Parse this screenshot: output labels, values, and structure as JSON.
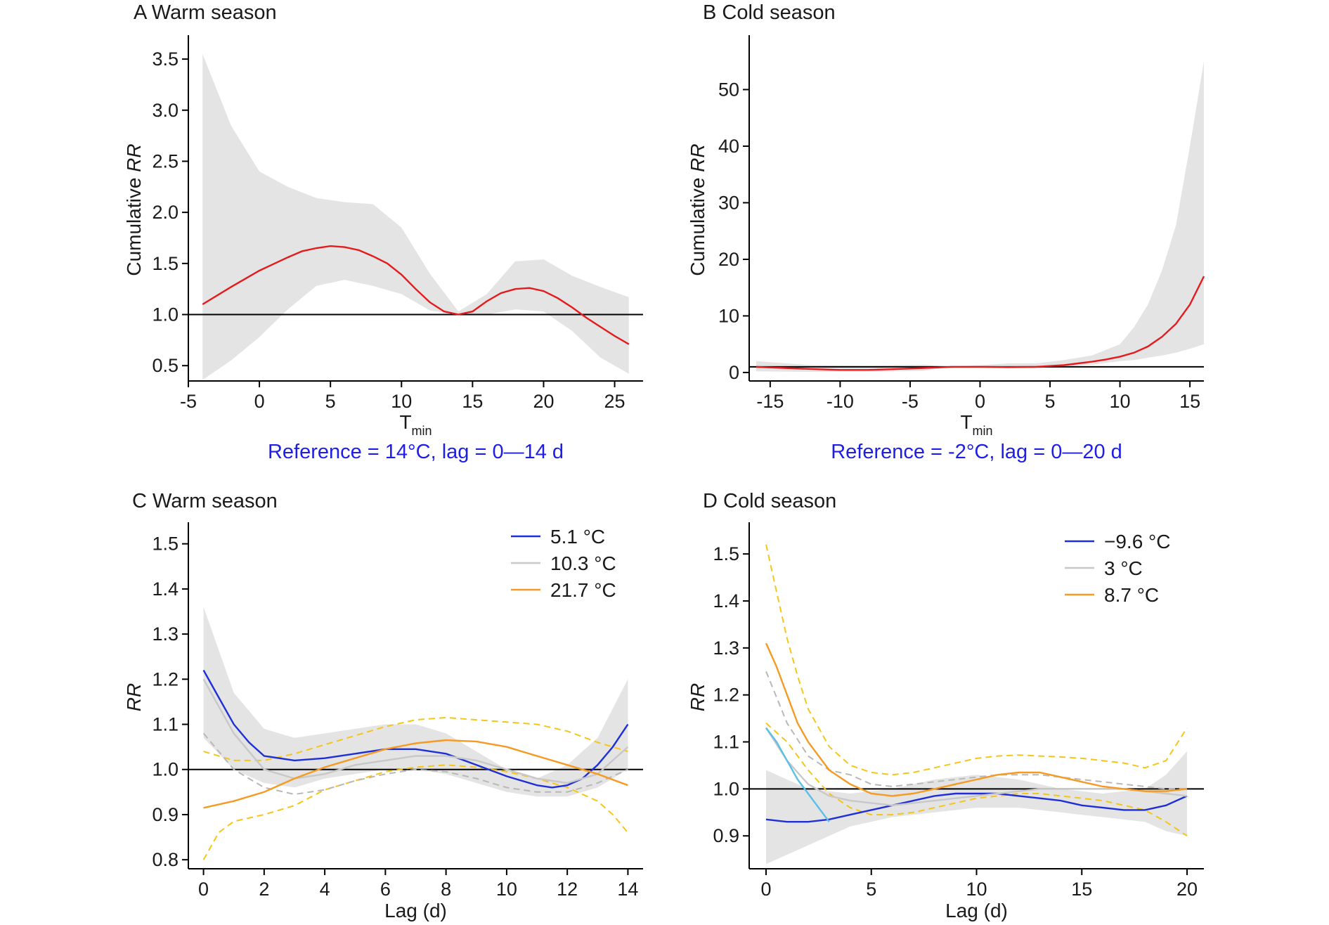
{
  "chart_data": [
    {
      "panel": "A",
      "type": "line",
      "title": "A Warm season",
      "xlabel": "T",
      "xlabel_sub": "min",
      "ylabel": "Cumulative",
      "ylabel_italic": "RR",
      "note": "Reference = 14°C, lag = 0—14 d",
      "xlim": [
        -5,
        27
      ],
      "ylim": [
        0.35,
        3.7
      ],
      "xticks": [
        -5,
        0,
        5,
        10,
        15,
        20,
        25
      ],
      "xtick_labels": [
        "-5",
        "0",
        "5",
        "10",
        "15",
        "20",
        "25"
      ],
      "yticks": [
        0.5,
        1.0,
        1.5,
        2.0,
        2.5,
        3.0,
        3.5
      ],
      "ytick_labels": [
        "0.5",
        "1.0",
        "1.5",
        "2.0",
        "2.5",
        "3.0",
        "3.5"
      ],
      "reference_y": 1.0,
      "band": {
        "x": [
          -4,
          -2,
          0,
          2,
          4,
          6,
          8,
          10,
          12,
          14,
          16,
          18,
          20,
          22,
          24,
          26
        ],
        "lower": [
          0.36,
          0.55,
          0.78,
          1.05,
          1.28,
          1.34,
          1.28,
          1.2,
          1.04,
          1.0,
          1.0,
          1.05,
          1.03,
          0.84,
          0.58,
          0.42
        ],
        "upper": [
          3.55,
          2.85,
          2.4,
          2.25,
          2.14,
          2.1,
          2.08,
          1.85,
          1.4,
          1.03,
          1.2,
          1.52,
          1.54,
          1.38,
          1.27,
          1.17
        ]
      },
      "series": [
        {
          "color": "#e41a1c",
          "style": "solid",
          "x": [
            -4,
            -2,
            0,
            2,
            3,
            4,
            5,
            6,
            7,
            8,
            9,
            10,
            11,
            12,
            13,
            14,
            15,
            16,
            17,
            18,
            19,
            20,
            21,
            22,
            23,
            24,
            25,
            26
          ],
          "y": [
            1.1,
            1.27,
            1.43,
            1.56,
            1.62,
            1.65,
            1.67,
            1.66,
            1.63,
            1.57,
            1.5,
            1.39,
            1.25,
            1.12,
            1.03,
            1.0,
            1.03,
            1.13,
            1.21,
            1.25,
            1.26,
            1.23,
            1.16,
            1.07,
            0.97,
            0.88,
            0.79,
            0.71
          ]
        }
      ]
    },
    {
      "panel": "B",
      "type": "line",
      "title": "B Cold season",
      "xlabel": "T",
      "xlabel_sub": "min",
      "ylabel": "Cumulative",
      "ylabel_italic": "RR",
      "note": "Reference = -2°C, lag = 0—20 d",
      "xlim": [
        -16.5,
        16
      ],
      "ylim": [
        -1.5,
        59
      ],
      "xticks": [
        -15,
        -10,
        -5,
        0,
        5,
        10,
        15
      ],
      "xtick_labels": [
        "-15",
        "-10",
        "-5",
        "0",
        "5",
        "10",
        "15"
      ],
      "yticks": [
        0,
        10,
        20,
        30,
        40,
        50
      ],
      "ytick_labels": [
        "0",
        "10",
        "20",
        "30",
        "40",
        "50"
      ],
      "reference_y": 1.0,
      "band": {
        "x": [
          -16,
          -12,
          -8,
          -4,
          -2,
          0,
          2,
          4,
          6,
          8,
          10,
          11,
          12,
          13,
          14,
          15,
          16
        ],
        "lower": [
          0.2,
          0.1,
          0.1,
          0.3,
          1.0,
          0.95,
          0.7,
          0.8,
          1.0,
          1.4,
          2.0,
          2.2,
          2.6,
          3.0,
          3.5,
          4.2,
          5.0
        ],
        "upper": [
          2.0,
          1.3,
          1.2,
          1.4,
          1.0,
          1.3,
          1.6,
          1.6,
          2.2,
          3.0,
          5.0,
          8.0,
          12.0,
          18.0,
          26.0,
          40.0,
          55.0
        ]
      },
      "series": [
        {
          "color": "#e41a1c",
          "style": "solid",
          "x": [
            -16,
            -14,
            -12,
            -10,
            -8,
            -6,
            -4,
            -2,
            0,
            2,
            4,
            6,
            7,
            8,
            9,
            10,
            11,
            12,
            13,
            14,
            15,
            16
          ],
          "y": [
            1.0,
            0.8,
            0.6,
            0.45,
            0.45,
            0.6,
            0.8,
            1.0,
            1.0,
            0.95,
            1.0,
            1.3,
            1.6,
            1.9,
            2.3,
            2.8,
            3.5,
            4.6,
            6.3,
            8.6,
            12.0,
            17.0
          ]
        }
      ]
    },
    {
      "panel": "C",
      "type": "line",
      "title": "C  Warm season",
      "xlabel": "Lag (d)",
      "ylabel_italic": "RR",
      "xlim": [
        -0.5,
        14.5
      ],
      "ylim": [
        0.78,
        1.54
      ],
      "xticks": [
        0,
        2,
        4,
        6,
        8,
        10,
        12,
        14
      ],
      "xtick_labels": [
        "0",
        "2",
        "4",
        "6",
        "8",
        "10",
        "12",
        "14"
      ],
      "yticks": [
        0.8,
        0.9,
        1.0,
        1.1,
        1.2,
        1.3,
        1.4,
        1.5
      ],
      "ytick_labels": [
        "0.8",
        "0.9",
        "1.0",
        "1.1",
        "1.2",
        "1.3",
        "1.4",
        "1.5"
      ],
      "reference_y": 1.0,
      "legend": {
        "position": "top-right",
        "entries": [
          "5.1 °C",
          "10.3 °C",
          "21.7 °C"
        ],
        "colors": [
          "#1f2fd8",
          "#c8c8c8",
          "#f59a23"
        ]
      },
      "band": {
        "x": [
          0,
          1,
          2,
          3,
          4,
          5,
          6,
          7,
          8,
          9,
          10,
          11,
          12,
          13,
          14
        ],
        "lower": [
          1.07,
          1.0,
          0.97,
          0.96,
          0.98,
          0.99,
          1.0,
          1.0,
          0.99,
          0.97,
          0.95,
          0.94,
          0.94,
          0.96,
          1.0
        ],
        "upper": [
          1.36,
          1.17,
          1.09,
          1.07,
          1.08,
          1.09,
          1.1,
          1.1,
          1.08,
          1.04,
          1.0,
          0.98,
          1.01,
          1.07,
          1.2
        ]
      },
      "series": [
        {
          "name": "5.1 °C",
          "color": "#1f2fd8",
          "style": "solid",
          "x": [
            0,
            0.5,
            1,
            1.5,
            2,
            3,
            4,
            5,
            6,
            7,
            8,
            9,
            10,
            11,
            11.5,
            12,
            12.5,
            13,
            13.5,
            14
          ],
          "y": [
            1.22,
            1.16,
            1.1,
            1.06,
            1.03,
            1.02,
            1.025,
            1.035,
            1.045,
            1.045,
            1.035,
            1.01,
            0.985,
            0.965,
            0.96,
            0.965,
            0.98,
            1.01,
            1.05,
            1.1
          ]
        },
        {
          "name": "10.3 °C",
          "color": "#c8c8c8",
          "style": "solid",
          "x": [
            0,
            1,
            2,
            3,
            4,
            5,
            6,
            7,
            8,
            9,
            10,
            11,
            12,
            13,
            14
          ],
          "y": [
            1.2,
            1.08,
            1.0,
            0.98,
            0.99,
            1.01,
            1.02,
            1.03,
            1.03,
            1.02,
            1.0,
            0.98,
            0.97,
            0.99,
            1.05
          ]
        },
        {
          "name": "21.7 °C",
          "color": "#f59a23",
          "style": "solid",
          "x": [
            0,
            1,
            2,
            3,
            4,
            5,
            6,
            7,
            8,
            9,
            10,
            11,
            12,
            13,
            14
          ],
          "y": [
            0.915,
            0.93,
            0.95,
            0.98,
            1.005,
            1.025,
            1.045,
            1.058,
            1.065,
            1.062,
            1.05,
            1.03,
            1.01,
            0.99,
            0.965
          ]
        },
        {
          "name": "21.7 °C upper",
          "color": "#f5c518",
          "style": "dashed",
          "x": [
            0,
            1,
            2,
            3,
            4,
            5,
            6,
            7,
            8,
            9,
            10,
            11,
            12,
            13,
            14
          ],
          "y": [
            1.04,
            1.02,
            1.02,
            1.035,
            1.055,
            1.075,
            1.095,
            1.11,
            1.115,
            1.11,
            1.105,
            1.1,
            1.085,
            1.06,
            1.04
          ]
        },
        {
          "name": "21.7 °C lower",
          "color": "#f5c518",
          "style": "dashed",
          "x": [
            0,
            0.5,
            1,
            2,
            3,
            4,
            5,
            6,
            7,
            8,
            9,
            10,
            11,
            12,
            13,
            13.5,
            14
          ],
          "y": [
            0.8,
            0.86,
            0.885,
            0.9,
            0.92,
            0.955,
            0.975,
            0.995,
            1.005,
            1.01,
            1.005,
            0.995,
            0.98,
            0.96,
            0.93,
            0.9,
            0.86
          ]
        },
        {
          "name": "10.3 °C lower",
          "color": "#b8b8b8",
          "style": "dashed",
          "x": [
            0,
            1,
            2,
            3,
            4,
            5,
            6,
            7,
            8,
            9,
            10,
            11,
            12,
            13,
            14
          ],
          "y": [
            1.08,
            1.0,
            0.96,
            0.945,
            0.955,
            0.975,
            0.99,
            1.0,
            0.995,
            0.98,
            0.96,
            0.95,
            0.95,
            0.97,
            1.0
          ]
        }
      ]
    },
    {
      "panel": "D",
      "type": "line",
      "title": "D Cold season",
      "xlabel": "Lag (d)",
      "ylabel_italic": "RR",
      "xlim": [
        -0.8,
        20.8
      ],
      "ylim": [
        0.83,
        1.56
      ],
      "xticks": [
        0,
        5,
        10,
        15,
        20
      ],
      "xtick_labels": [
        "0",
        "5",
        "10",
        "15",
        "20"
      ],
      "yticks": [
        0.9,
        1.0,
        1.1,
        1.2,
        1.3,
        1.4,
        1.5
      ],
      "ytick_labels": [
        "0.9",
        "1.0",
        "1.1",
        "1.2",
        "1.3",
        "1.4",
        "1.5"
      ],
      "reference_y": 1.0,
      "legend": {
        "position": "top-right",
        "entries": [
          "−9.6 °C",
          "3 °C",
          "8.7 °C"
        ],
        "colors": [
          "#1f2fd8",
          "#c8c8c8",
          "#f59a23"
        ]
      },
      "band": {
        "x": [
          0,
          2,
          4,
          6,
          8,
          10,
          12,
          14,
          16,
          18,
          19,
          20
        ],
        "lower": [
          0.84,
          0.88,
          0.92,
          0.94,
          0.95,
          0.96,
          0.96,
          0.95,
          0.94,
          0.93,
          0.91,
          0.9
        ],
        "upper": [
          1.04,
          1.0,
          0.99,
          1.0,
          1.02,
          1.03,
          1.02,
          1.0,
          0.99,
          1.0,
          1.03,
          1.08
        ]
      },
      "series": [
        {
          "name": "−9.6 °C",
          "color": "#1f2fd8",
          "style": "solid",
          "x": [
            0,
            1,
            2,
            3,
            4,
            5,
            6,
            7,
            8,
            9,
            10,
            11,
            12,
            13,
            14,
            15,
            16,
            17,
            18,
            19,
            20
          ],
          "y": [
            0.935,
            0.93,
            0.93,
            0.935,
            0.945,
            0.955,
            0.965,
            0.975,
            0.985,
            0.99,
            0.99,
            0.99,
            0.985,
            0.98,
            0.975,
            0.965,
            0.96,
            0.955,
            0.955,
            0.965,
            0.985
          ]
        },
        {
          "name": "3 °C",
          "color": "#c8c8c8",
          "style": "solid",
          "x": [
            0,
            1,
            2,
            3,
            4,
            5,
            6,
            7,
            8,
            9,
            10,
            11,
            12,
            13,
            14,
            15,
            16,
            17,
            18,
            19,
            20
          ],
          "y": [
            1.13,
            1.06,
            1.01,
            0.985,
            0.975,
            0.97,
            0.965,
            0.97,
            0.975,
            0.98,
            0.985,
            0.99,
            0.995,
            1.0,
            1.0,
            1.0,
            1.0,
            1.0,
            0.995,
            0.99,
            0.985
          ]
        },
        {
          "name": "8.7 °C",
          "color": "#f59a23",
          "style": "solid",
          "x": [
            0,
            0.5,
            1,
            1.5,
            2,
            3,
            4,
            5,
            6,
            7,
            8,
            9,
            10,
            11,
            12,
            13,
            14,
            15,
            16,
            17,
            18,
            19,
            20
          ],
          "y": [
            1.31,
            1.26,
            1.2,
            1.14,
            1.1,
            1.04,
            1.01,
            0.99,
            0.985,
            0.99,
            1.0,
            1.01,
            1.02,
            1.03,
            1.035,
            1.035,
            1.025,
            1.015,
            1.005,
            1.0,
            0.995,
            0.995,
            1.0
          ]
        },
        {
          "name": "8.7 °C upper",
          "color": "#f5c518",
          "style": "dashed",
          "x": [
            0,
            0.5,
            1,
            1.5,
            2,
            3,
            4,
            5,
            6,
            7,
            8,
            9,
            10,
            11,
            12,
            13,
            14,
            15,
            16,
            17,
            18,
            19,
            20
          ],
          "y": [
            1.52,
            1.42,
            1.32,
            1.24,
            1.17,
            1.09,
            1.05,
            1.035,
            1.03,
            1.035,
            1.045,
            1.055,
            1.065,
            1.07,
            1.072,
            1.07,
            1.068,
            1.065,
            1.06,
            1.055,
            1.045,
            1.06,
            1.13
          ]
        },
        {
          "name": "8.7 °C lower",
          "color": "#f5c518",
          "style": "dashed",
          "x": [
            0,
            1,
            2,
            3,
            4,
            5,
            6,
            7,
            8,
            9,
            10,
            11,
            12,
            13,
            14,
            15,
            16,
            17,
            18,
            19,
            20
          ],
          "y": [
            1.14,
            1.1,
            1.04,
            0.99,
            0.96,
            0.945,
            0.945,
            0.95,
            0.96,
            0.97,
            0.98,
            0.985,
            0.99,
            0.99,
            0.985,
            0.98,
            0.975,
            0.965,
            0.955,
            0.93,
            0.9
          ]
        },
        {
          "name": "3 °C band",
          "color": "#b8b8b8",
          "style": "dashed",
          "x": [
            0,
            1,
            2,
            3,
            4,
            5,
            6,
            7,
            8,
            9,
            10,
            11,
            12,
            13,
            14,
            15,
            16,
            17,
            18,
            19,
            20
          ],
          "y": [
            1.25,
            1.14,
            1.07,
            1.04,
            1.03,
            1.01,
            1.005,
            1.01,
            1.015,
            1.02,
            1.025,
            1.03,
            1.03,
            1.03,
            1.025,
            1.02,
            1.015,
            1.01,
            1.005,
            1.0,
            1.0
          ]
        },
        {
          "name": "−9.6 °C upper",
          "color": "#5bbfe6",
          "style": "solid",
          "x": [
            0,
            0.5,
            1,
            1.5,
            2,
            2.5,
            3
          ],
          "y": [
            1.13,
            1.1,
            1.06,
            1.02,
            0.99,
            0.96,
            0.93
          ]
        }
      ]
    }
  ]
}
